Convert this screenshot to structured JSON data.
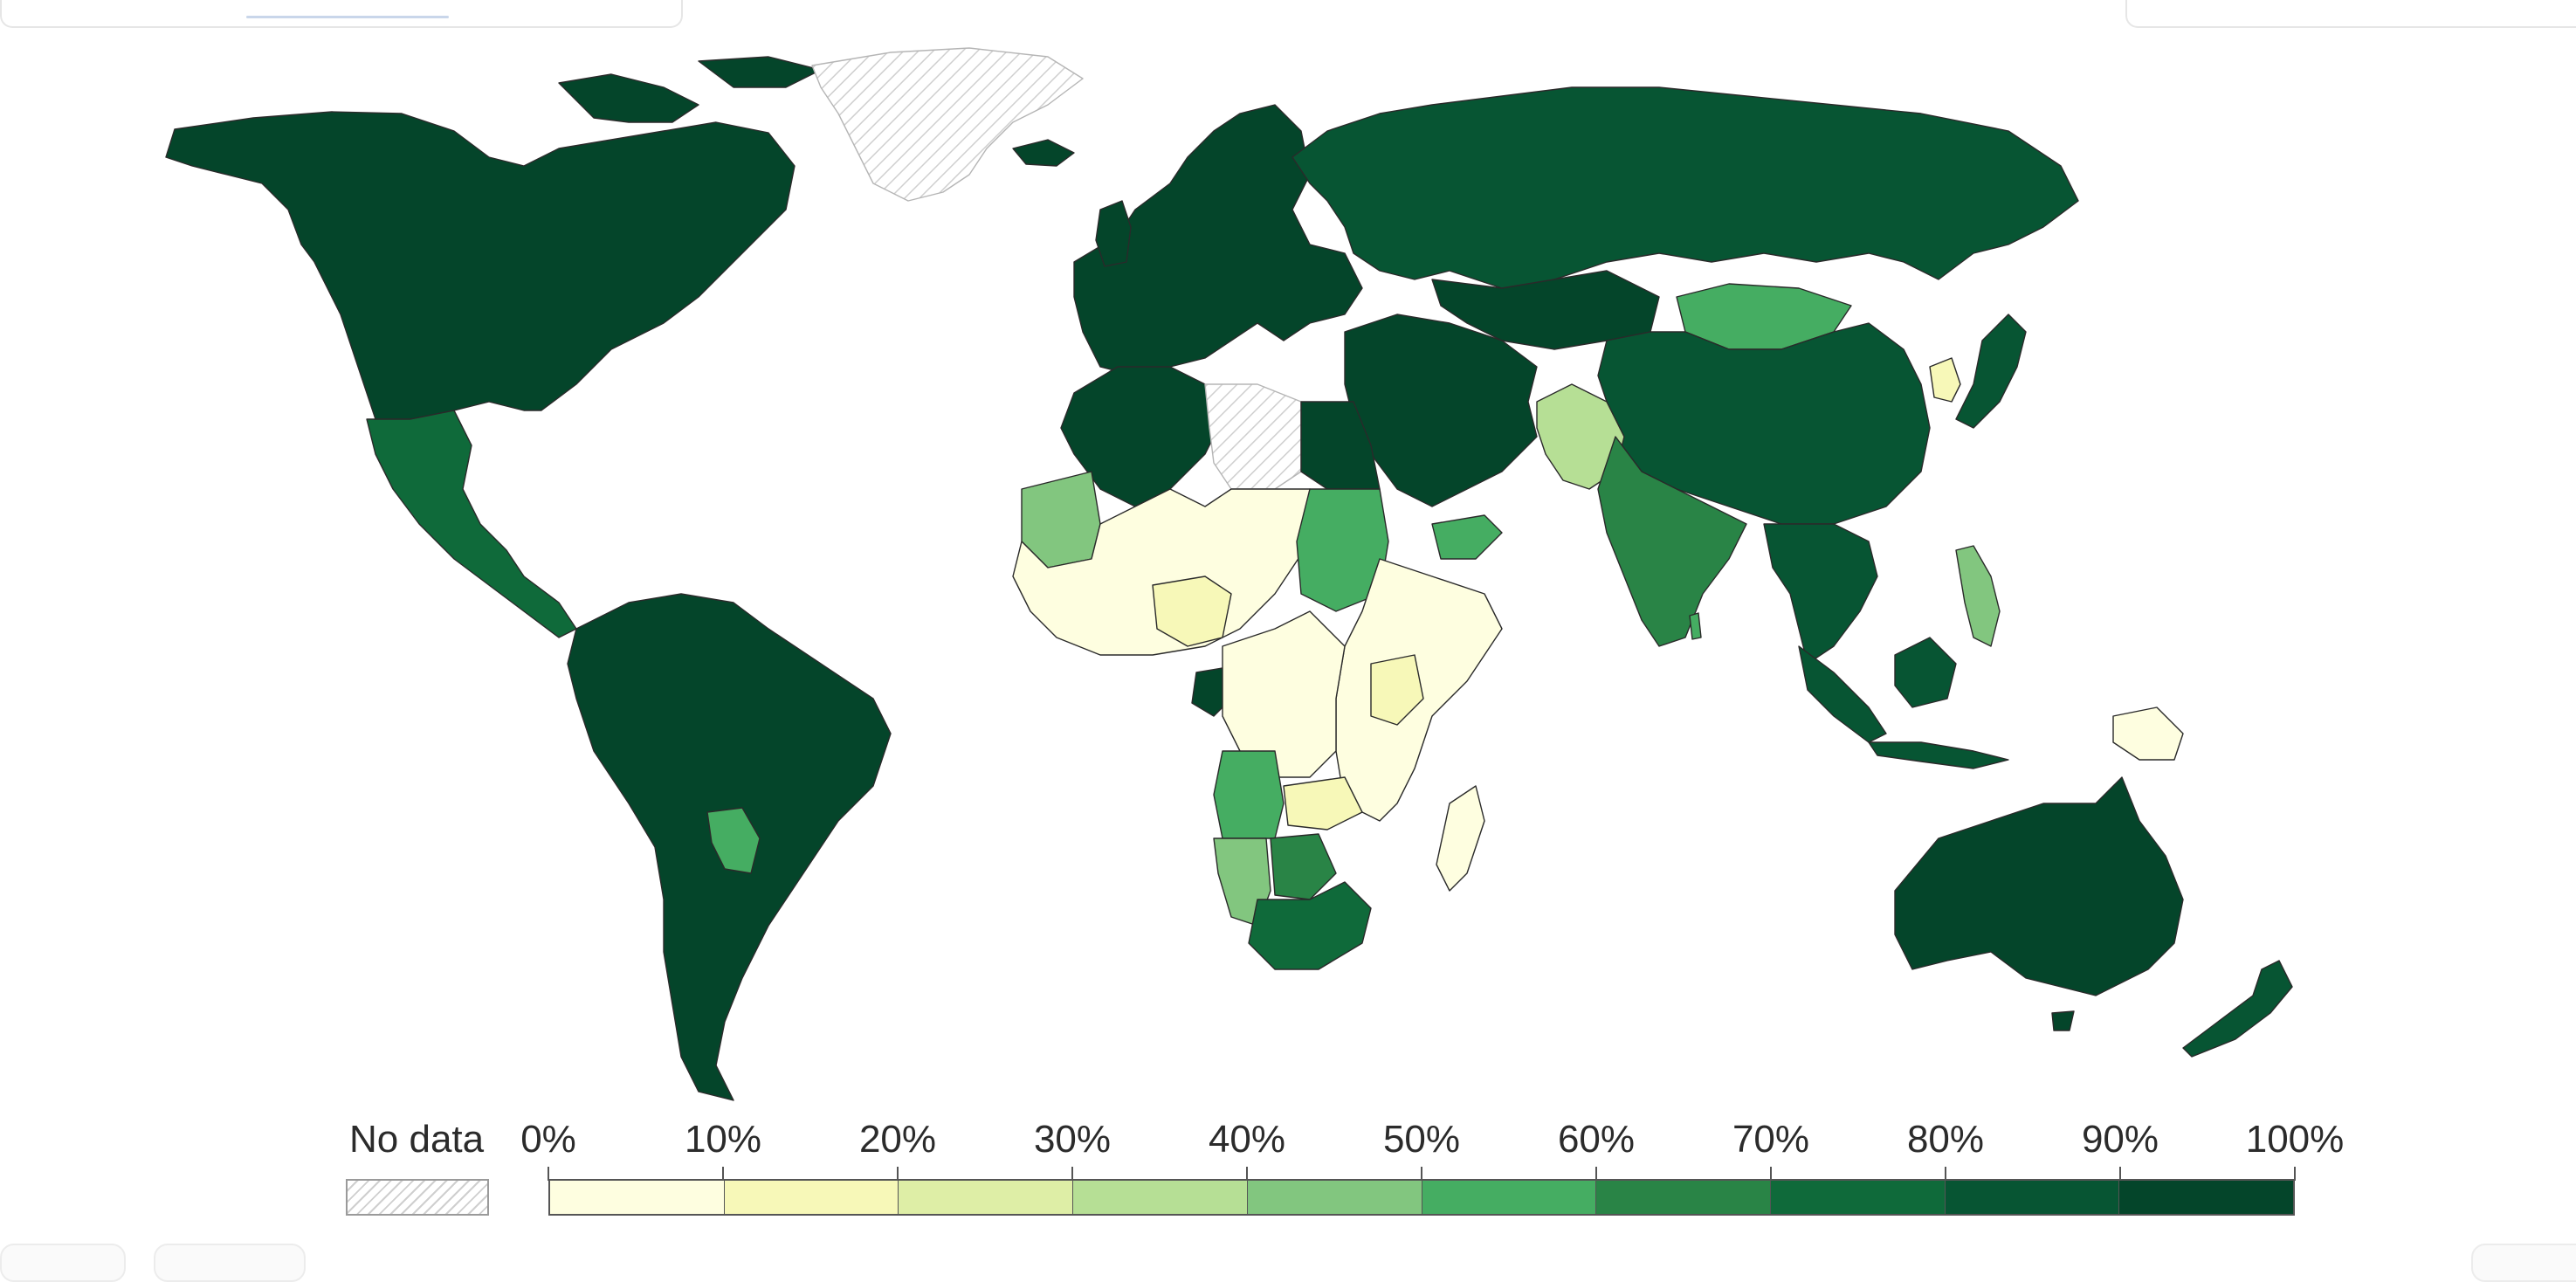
{
  "legend": {
    "no_data_label": "No data",
    "ticks": [
      "0%",
      "10%",
      "20%",
      "30%",
      "40%",
      "50%",
      "60%",
      "70%",
      "80%",
      "90%",
      "100%"
    ],
    "colors": [
      "#fefee0",
      "#f7f8b8",
      "#deeea6",
      "#b6df95",
      "#82c67f",
      "#45ad62",
      "#298446",
      "#0f6a3a",
      "#075533",
      "#04452a"
    ]
  },
  "map": {
    "no_data_pattern_color": "#cfcfcf",
    "regions": [
      {
        "name": "North America",
        "level": 9
      },
      {
        "name": "Central America",
        "level": 7
      },
      {
        "name": "South America",
        "level": 9
      },
      {
        "name": "Paraguay",
        "level": 5
      },
      {
        "name": "Greenland",
        "level": -1
      },
      {
        "name": "Europe",
        "level": 9
      },
      {
        "name": "Russia",
        "level": 8
      },
      {
        "name": "Kazakhstan",
        "level": 9
      },
      {
        "name": "Mongolia",
        "level": 5
      },
      {
        "name": "China",
        "level": 8
      },
      {
        "name": "Korea",
        "level": 1
      },
      {
        "name": "Japan",
        "level": 8
      },
      {
        "name": "Middle East",
        "level": 9
      },
      {
        "name": "Yemen",
        "level": 5
      },
      {
        "name": "Afghanistan & Pakistan",
        "level": 3
      },
      {
        "name": "India",
        "level": 6
      },
      {
        "name": "Southeast Asia",
        "level": 8
      },
      {
        "name": "Philippines",
        "level": 4
      },
      {
        "name": "Indonesia",
        "level": 8
      },
      {
        "name": "Papua New Guinea",
        "level": 0
      },
      {
        "name": "Australia",
        "level": 9
      },
      {
        "name": "New Zealand",
        "level": 8
      },
      {
        "name": "North Africa",
        "level": 9
      },
      {
        "name": "Libya",
        "level": -1
      },
      {
        "name": "Egypt",
        "level": 9
      },
      {
        "name": "Mauritania",
        "level": 4
      },
      {
        "name": "West Africa",
        "level": 0
      },
      {
        "name": "Nigeria",
        "level": 1
      },
      {
        "name": "Sudan",
        "level": 5
      },
      {
        "name": "East Africa",
        "level": 0
      },
      {
        "name": "Kenya",
        "level": 1
      },
      {
        "name": "Gabon",
        "level": 9
      },
      {
        "name": "Central Africa",
        "level": 0
      },
      {
        "name": "Angola",
        "level": 5
      },
      {
        "name": "Zambia",
        "level": 1
      },
      {
        "name": "Namibia",
        "level": 4
      },
      {
        "name": "Botswana",
        "level": 6
      },
      {
        "name": "South Africa",
        "level": 7
      },
      {
        "name": "Madagascar",
        "level": 0
      }
    ]
  }
}
